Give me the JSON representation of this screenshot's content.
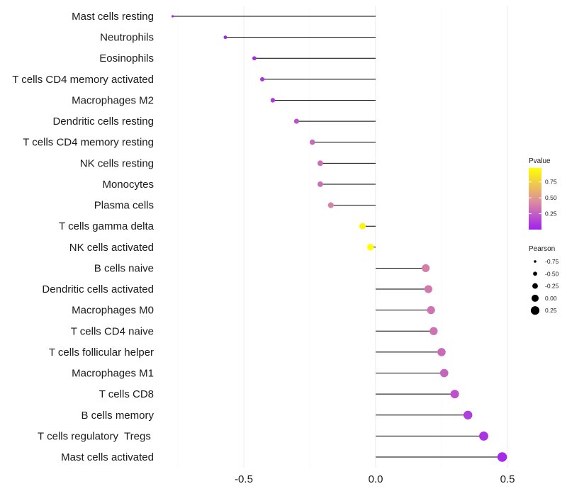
{
  "chart_data": {
    "type": "lollipop",
    "categories": [
      "Mast cells resting",
      "Neutrophils",
      "Eosinophils",
      "T cells CD4 memory activated",
      "Macrophages M2",
      "Dendritic cells resting",
      "T cells CD4 memory resting",
      "NK cells resting",
      "Monocytes",
      "Plasma cells",
      "T cells gamma delta",
      "NK cells activated",
      "B cells naive",
      "Dendritic cells activated",
      "Macrophages M0",
      "T cells CD4 naive",
      "T cells follicular helper",
      "Macrophages M1",
      "T cells CD8",
      "B cells memory",
      "T cells regulatory  Tregs ",
      "Mast cells activated"
    ],
    "values": [
      -0.77,
      -0.57,
      -0.46,
      -0.43,
      -0.39,
      -0.3,
      -0.24,
      -0.21,
      -0.21,
      -0.17,
      -0.05,
      -0.02,
      0.19,
      0.2,
      0.21,
      0.22,
      0.25,
      0.26,
      0.3,
      0.35,
      0.41,
      0.48
    ],
    "pvalues": [
      0.01,
      0.02,
      0.05,
      0.07,
      0.1,
      0.2,
      0.3,
      0.32,
      0.32,
      0.4,
      0.93,
      0.97,
      0.38,
      0.36,
      0.34,
      0.33,
      0.3,
      0.28,
      0.2,
      0.12,
      0.08,
      0.04
    ],
    "xlim": [
      -0.8,
      0.52
    ],
    "xticks": [
      -0.5,
      0.0,
      0.5
    ],
    "xtick_labels": [
      "-0.5",
      "0.0",
      "0.5"
    ],
    "title": "",
    "xlabel": "",
    "ylabel": "",
    "grid": true,
    "legend_placement": "right",
    "color_legend": {
      "title": "Pvalue",
      "ticks": [
        0.25,
        0.5,
        0.75
      ],
      "tick_labels": [
        "0.25",
        "0.50",
        "0.75"
      ],
      "range": [
        0.0,
        0.97
      ],
      "low_color": "#a020f0",
      "mid_color": "#dc8ca0",
      "high_color": "#ffff00"
    },
    "size_legend": {
      "title": "Pearson",
      "values": [
        -0.75,
        -0.5,
        -0.25,
        0.0,
        0.25
      ],
      "labels": [
        "-0.75",
        "-0.50",
        "-0.25",
        "0.00",
        "0.25"
      ]
    }
  }
}
